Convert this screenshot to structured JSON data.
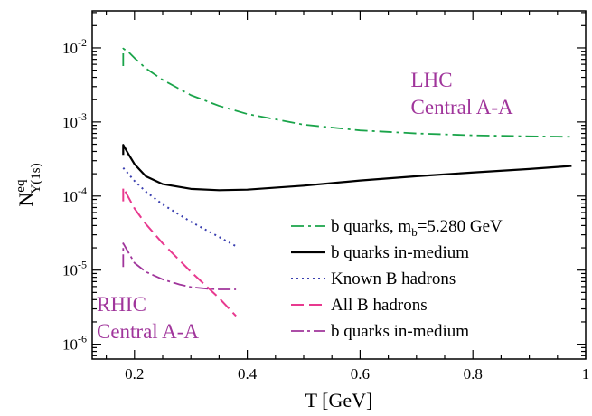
{
  "chart_data": {
    "type": "line",
    "xlabel": "T [GeV]",
    "ylabel": {
      "main": "N",
      "sup": "eq",
      "sub": "Υ(1s)"
    },
    "xlim": [
      0.125,
      1.0
    ],
    "ylim_log10": [
      -6.2,
      -1.5
    ],
    "yscale": "log",
    "x_ticks": [
      {
        "value": 0.2,
        "label": "0.2"
      },
      {
        "value": 0.4,
        "label": "0.4"
      },
      {
        "value": 0.6,
        "label": "0.6"
      },
      {
        "value": 0.8,
        "label": "0.8"
      },
      {
        "value": 1.0,
        "label": "1"
      }
    ],
    "y_ticks": [
      {
        "exp": -6,
        "label": "10",
        "sup": "-6"
      },
      {
        "exp": -5,
        "label": "10",
        "sup": "-5"
      },
      {
        "exp": -4,
        "label": "10",
        "sup": "-4"
      },
      {
        "exp": -3,
        "label": "10",
        "sup": "-3"
      },
      {
        "exp": -2,
        "label": "10",
        "sup": "-2"
      }
    ],
    "grid": false,
    "legend_position": "bottom-right",
    "annotations": [
      {
        "id": "lhc",
        "lines": [
          "LHC",
          "Central A-A"
        ],
        "color": "#a0359b",
        "data_x": 0.69,
        "data_y": 0.003
      },
      {
        "id": "rhic",
        "lines": [
          "RHIC",
          "Central A-A"
        ],
        "color": "#a0359b",
        "data_x": 0.133,
        "data_y": 2.8e-06
      }
    ],
    "series": [
      {
        "name": "b quarks, m_b=5.280 GeV",
        "legend": {
          "text": "b quarks, m",
          "sub": "b",
          "rest": "=5.280 GeV"
        },
        "color": "#1aa44a",
        "dash": "14,5,3,5",
        "width": 1.8,
        "x": [
          0.18,
          0.18,
          0.19,
          0.2,
          0.22,
          0.25,
          0.3,
          0.35,
          0.4,
          0.5,
          0.6,
          0.7,
          0.8,
          0.9,
          0.975
        ],
        "y": [
          0.0057,
          0.0098,
          0.0087,
          0.0073,
          0.0053,
          0.0037,
          0.0023,
          0.00165,
          0.00128,
          0.00092,
          0.00077,
          0.0007,
          0.00066,
          0.00064,
          0.00063
        ]
      },
      {
        "name": "b quarks in-medium",
        "legend": {
          "text": "b quarks in-medium"
        },
        "color": "#000000",
        "dash": "",
        "width": 2.2,
        "x": [
          0.18,
          0.18,
          0.19,
          0.2,
          0.22,
          0.25,
          0.3,
          0.35,
          0.4,
          0.5,
          0.6,
          0.7,
          0.8,
          0.9,
          0.975
        ],
        "y": [
          0.00036,
          0.00049,
          0.00036,
          0.00027,
          0.000185,
          0.000145,
          0.000125,
          0.00012,
          0.000122,
          0.000138,
          0.000162,
          0.000185,
          0.000208,
          0.000232,
          0.000255
        ]
      },
      {
        "name": "Known B hadrons",
        "legend": {
          "text": "Known B hadrons"
        },
        "color": "#3a3fb0",
        "dash": "2,4",
        "width": 2.0,
        "x": [
          0.18,
          0.2,
          0.22,
          0.25,
          0.3,
          0.35,
          0.38
        ],
        "y": [
          0.00024,
          0.00016,
          0.000115,
          7.7e-05,
          4.5e-05,
          2.8e-05,
          2.1e-05
        ]
      },
      {
        "name": "All B hadrons",
        "legend": {
          "text": "All B hadrons"
        },
        "color": "#e8398f",
        "dash": "14,6",
        "width": 2.0,
        "x": [
          0.18,
          0.18,
          0.2,
          0.22,
          0.25,
          0.3,
          0.35,
          0.38
        ],
        "y": [
          8.5e-05,
          0.00013,
          6.8e-05,
          4.2e-05,
          2.3e-05,
          9.5e-06,
          4.2e-06,
          2.4e-06
        ]
      },
      {
        "name": "b quarks in-medium",
        "legend": {
          "text": "b quarks in-medium"
        },
        "color": "#a0359b",
        "dash": "14,4,3,4",
        "width": 1.8,
        "x": [
          0.18,
          0.18,
          0.2,
          0.22,
          0.25,
          0.28,
          0.3,
          0.33,
          0.35,
          0.38
        ],
        "y": [
          1.1e-05,
          2.3e-05,
          1.25e-05,
          9.5e-06,
          7.5e-06,
          6.4e-06,
          5.9e-06,
          5.6e-06,
          5.5e-06,
          5.5e-06
        ]
      }
    ]
  }
}
